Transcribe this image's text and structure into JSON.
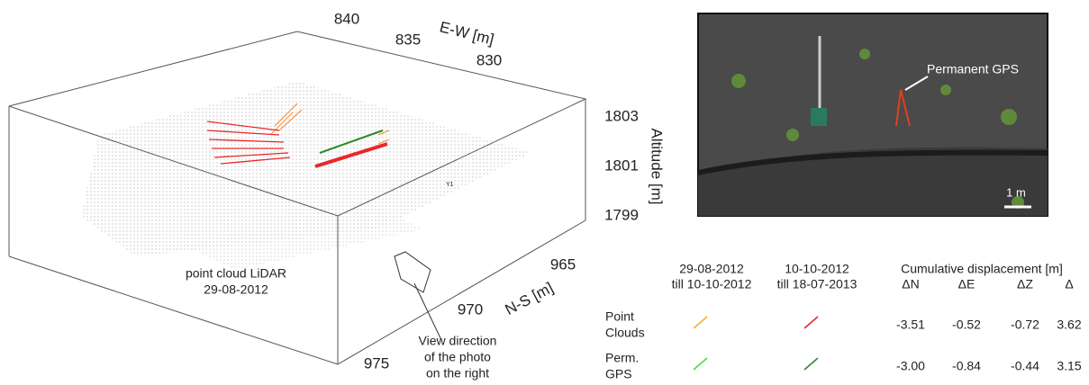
{
  "plot3d": {
    "ew_axis": {
      "label": "E-W [m]",
      "ticks": [
        840,
        835,
        830
      ]
    },
    "ns_axis": {
      "label": "N-S [m]",
      "ticks": [
        965,
        970,
        975
      ]
    },
    "alt_axis": {
      "label": "Altitude [m]",
      "ticks": [
        1803,
        1801,
        1799
      ]
    },
    "point_cloud_label": [
      "point cloud LiDAR",
      "29-08-2012"
    ],
    "view_label": [
      "View direction",
      "of the  photo",
      "on the right"
    ],
    "marker": "Y1"
  },
  "photo": {
    "annotation": "Permanent GPS",
    "scale": "1 m"
  },
  "table": {
    "period_headers": [
      [
        "29-08-2012",
        "till 10-10-2012"
      ],
      [
        "10-10-2012",
        "till 18-07-2013"
      ]
    ],
    "displacement_header": "Cumulative displacement [m]",
    "columns": [
      "ΔN",
      "ΔE",
      "ΔZ",
      "Δ"
    ],
    "rows": [
      {
        "label": [
          "Point",
          "Clouds"
        ],
        "values": [
          "-3.51",
          "-0.52",
          "-0.72",
          "3.62"
        ]
      },
      {
        "label": [
          "Perm.",
          "GPS"
        ],
        "values": [
          "-3.00",
          "-0.84",
          "-0.44",
          "3.15"
        ]
      }
    ]
  }
}
